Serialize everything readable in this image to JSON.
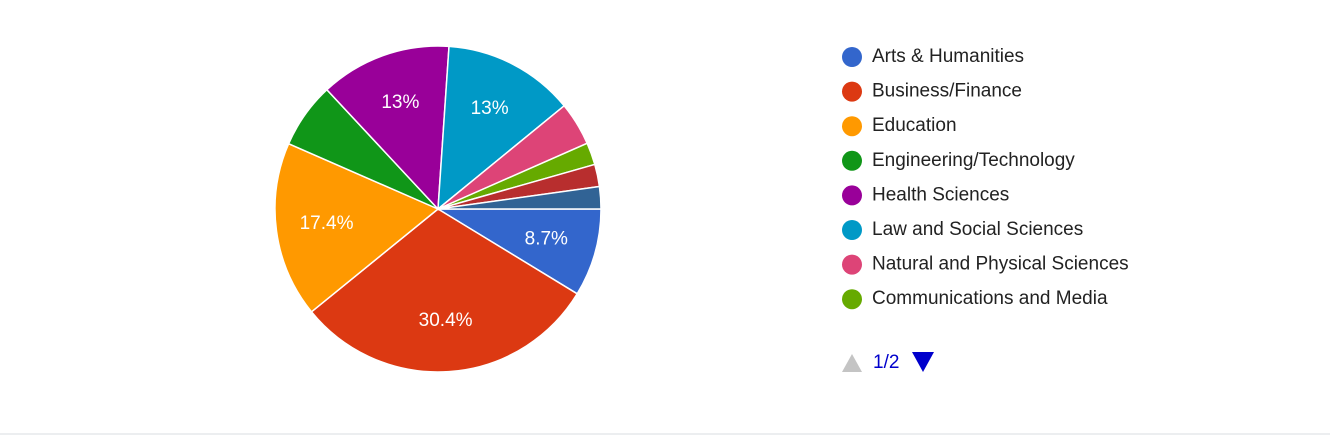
{
  "chart_data": {
    "type": "pie",
    "categories": [
      "Arts & Humanities",
      "Business/Finance",
      "Education",
      "Engineering/Technology",
      "Health Sciences",
      "Law and Social Sciences",
      "Natural and Physical Sciences",
      "Communications and Media",
      null,
      null
    ],
    "values": [
      8.7,
      30.4,
      17.4,
      6.5,
      13,
      13,
      4.3,
      2.2,
      2.2,
      2.2
    ],
    "value_labels": [
      "8.7%",
      "30.4%",
      "17.4%",
      null,
      "13%",
      "13%",
      null,
      null,
      null,
      null
    ],
    "colors": [
      "#3366cc",
      "#dc3912",
      "#ff9900",
      "#109618",
      "#990099",
      "#0099c6",
      "#dd4477",
      "#66aa00",
      "#b82e2e",
      "#316395"
    ],
    "legend": "right",
    "pager": {
      "label": "1/2"
    }
  }
}
